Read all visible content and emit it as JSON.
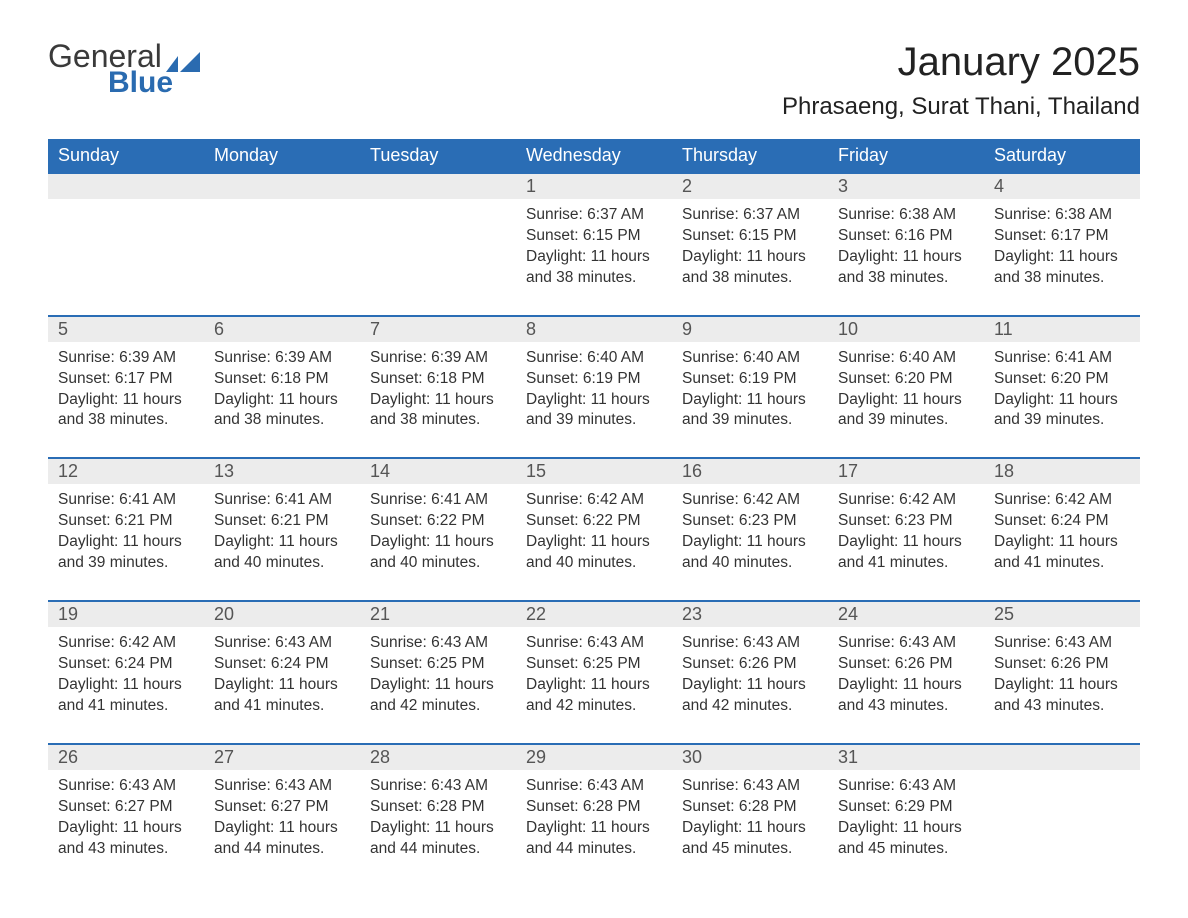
{
  "logo": {
    "text1": "General",
    "text2": "Blue",
    "accent_color": "#2a6bb0",
    "text_color": "#3a3a3a"
  },
  "title": "January 2025",
  "location": "Phrasaeng, Surat Thani, Thailand",
  "colors": {
    "header_bg": "#2a6db5",
    "header_text": "#ffffff",
    "row_border": "#2a6db5",
    "daynum_bg": "#ececec",
    "body_text": "#333333",
    "page_bg": "#ffffff"
  },
  "typography": {
    "title_fontsize": 40,
    "location_fontsize": 24,
    "weekday_fontsize": 18,
    "daynum_fontsize": 18,
    "cell_fontsize": 15.5
  },
  "weekdays": [
    "Sunday",
    "Monday",
    "Tuesday",
    "Wednesday",
    "Thursday",
    "Friday",
    "Saturday"
  ],
  "labels": {
    "sunrise": "Sunrise",
    "sunset": "Sunset",
    "daylight": "Daylight"
  },
  "weeks": [
    [
      null,
      null,
      null,
      {
        "day": 1,
        "sunrise": "6:37 AM",
        "sunset": "6:15 PM",
        "daylight": "11 hours and 38 minutes."
      },
      {
        "day": 2,
        "sunrise": "6:37 AM",
        "sunset": "6:15 PM",
        "daylight": "11 hours and 38 minutes."
      },
      {
        "day": 3,
        "sunrise": "6:38 AM",
        "sunset": "6:16 PM",
        "daylight": "11 hours and 38 minutes."
      },
      {
        "day": 4,
        "sunrise": "6:38 AM",
        "sunset": "6:17 PM",
        "daylight": "11 hours and 38 minutes."
      }
    ],
    [
      {
        "day": 5,
        "sunrise": "6:39 AM",
        "sunset": "6:17 PM",
        "daylight": "11 hours and 38 minutes."
      },
      {
        "day": 6,
        "sunrise": "6:39 AM",
        "sunset": "6:18 PM",
        "daylight": "11 hours and 38 minutes."
      },
      {
        "day": 7,
        "sunrise": "6:39 AM",
        "sunset": "6:18 PM",
        "daylight": "11 hours and 38 minutes."
      },
      {
        "day": 8,
        "sunrise": "6:40 AM",
        "sunset": "6:19 PM",
        "daylight": "11 hours and 39 minutes."
      },
      {
        "day": 9,
        "sunrise": "6:40 AM",
        "sunset": "6:19 PM",
        "daylight": "11 hours and 39 minutes."
      },
      {
        "day": 10,
        "sunrise": "6:40 AM",
        "sunset": "6:20 PM",
        "daylight": "11 hours and 39 minutes."
      },
      {
        "day": 11,
        "sunrise": "6:41 AM",
        "sunset": "6:20 PM",
        "daylight": "11 hours and 39 minutes."
      }
    ],
    [
      {
        "day": 12,
        "sunrise": "6:41 AM",
        "sunset": "6:21 PM",
        "daylight": "11 hours and 39 minutes."
      },
      {
        "day": 13,
        "sunrise": "6:41 AM",
        "sunset": "6:21 PM",
        "daylight": "11 hours and 40 minutes."
      },
      {
        "day": 14,
        "sunrise": "6:41 AM",
        "sunset": "6:22 PM",
        "daylight": "11 hours and 40 minutes."
      },
      {
        "day": 15,
        "sunrise": "6:42 AM",
        "sunset": "6:22 PM",
        "daylight": "11 hours and 40 minutes."
      },
      {
        "day": 16,
        "sunrise": "6:42 AM",
        "sunset": "6:23 PM",
        "daylight": "11 hours and 40 minutes."
      },
      {
        "day": 17,
        "sunrise": "6:42 AM",
        "sunset": "6:23 PM",
        "daylight": "11 hours and 41 minutes."
      },
      {
        "day": 18,
        "sunrise": "6:42 AM",
        "sunset": "6:24 PM",
        "daylight": "11 hours and 41 minutes."
      }
    ],
    [
      {
        "day": 19,
        "sunrise": "6:42 AM",
        "sunset": "6:24 PM",
        "daylight": "11 hours and 41 minutes."
      },
      {
        "day": 20,
        "sunrise": "6:43 AM",
        "sunset": "6:24 PM",
        "daylight": "11 hours and 41 minutes."
      },
      {
        "day": 21,
        "sunrise": "6:43 AM",
        "sunset": "6:25 PM",
        "daylight": "11 hours and 42 minutes."
      },
      {
        "day": 22,
        "sunrise": "6:43 AM",
        "sunset": "6:25 PM",
        "daylight": "11 hours and 42 minutes."
      },
      {
        "day": 23,
        "sunrise": "6:43 AM",
        "sunset": "6:26 PM",
        "daylight": "11 hours and 42 minutes."
      },
      {
        "day": 24,
        "sunrise": "6:43 AM",
        "sunset": "6:26 PM",
        "daylight": "11 hours and 43 minutes."
      },
      {
        "day": 25,
        "sunrise": "6:43 AM",
        "sunset": "6:26 PM",
        "daylight": "11 hours and 43 minutes."
      }
    ],
    [
      {
        "day": 26,
        "sunrise": "6:43 AM",
        "sunset": "6:27 PM",
        "daylight": "11 hours and 43 minutes."
      },
      {
        "day": 27,
        "sunrise": "6:43 AM",
        "sunset": "6:27 PM",
        "daylight": "11 hours and 44 minutes."
      },
      {
        "day": 28,
        "sunrise": "6:43 AM",
        "sunset": "6:28 PM",
        "daylight": "11 hours and 44 minutes."
      },
      {
        "day": 29,
        "sunrise": "6:43 AM",
        "sunset": "6:28 PM",
        "daylight": "11 hours and 44 minutes."
      },
      {
        "day": 30,
        "sunrise": "6:43 AM",
        "sunset": "6:28 PM",
        "daylight": "11 hours and 45 minutes."
      },
      {
        "day": 31,
        "sunrise": "6:43 AM",
        "sunset": "6:29 PM",
        "daylight": "11 hours and 45 minutes."
      },
      null
    ]
  ]
}
